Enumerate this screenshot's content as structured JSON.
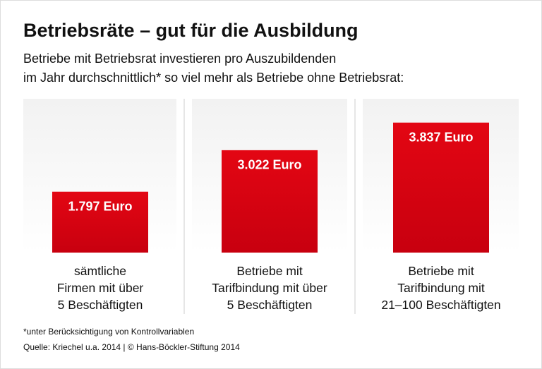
{
  "chart_data": {
    "type": "bar",
    "title": "Betriebsräte – gut für die Ausbildung",
    "subtitle": "Betriebe mit Betriebsrat investieren pro Auszubildenden\nim Jahr durchschnittlich* so viel mehr als Betriebe ohne Betriebsrat:",
    "categories": [
      "sämtliche\nFirmen mit über\n5 Beschäftigten",
      "Betriebe mit\nTarifbindung mit über\n5 Beschäftigten",
      "Betriebe mit\nTarifbindung mit\n21–100 Beschäftigten"
    ],
    "values": [
      1797,
      3022,
      3837
    ],
    "value_labels": [
      "1.797 Euro",
      "3.022 Euro",
      "3.837 Euro"
    ],
    "color": "#e2001a",
    "ylim": [
      0,
      4540
    ],
    "footnote": "*unter Berücksichtigung von Kontrollvariablen",
    "source": "Quelle: Kriechel u.a. 2014 | © Hans-Böckler-Stiftung 2014"
  }
}
